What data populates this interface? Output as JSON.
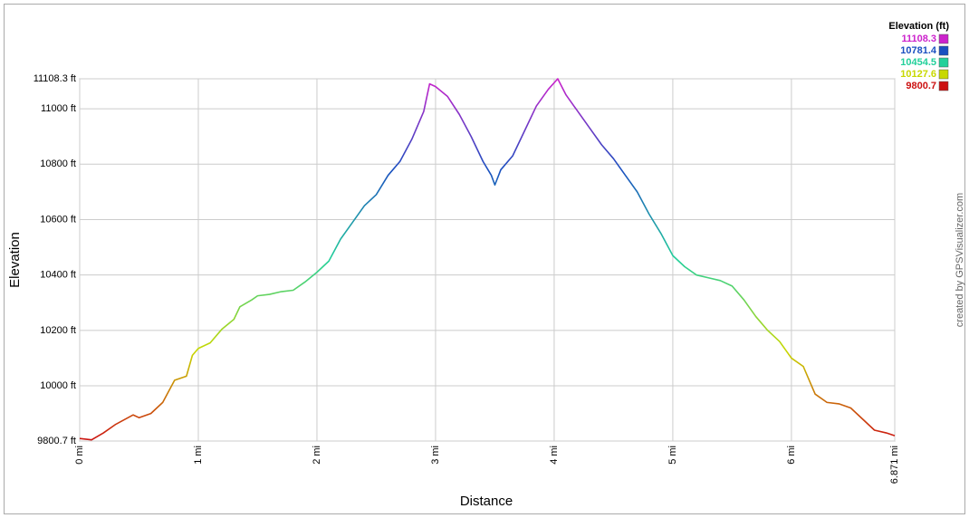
{
  "chart_data": {
    "type": "line",
    "x_label": "Distance",
    "y_label": "Elevation",
    "credit": "created by GPSVisualizer.com",
    "xlim": [
      0,
      6.871
    ],
    "ylim": [
      9800.7,
      11108.3
    ],
    "xticks": [
      {
        "value": 0,
        "label": "0 mi"
      },
      {
        "value": 1,
        "label": "1 mi"
      },
      {
        "value": 2,
        "label": "2 mi"
      },
      {
        "value": 3,
        "label": "3 mi"
      },
      {
        "value": 4,
        "label": "4 mi"
      },
      {
        "value": 5,
        "label": "5 mi"
      },
      {
        "value": 6,
        "label": "6 mi"
      },
      {
        "value": 6.871,
        "label": "6.871 mi"
      }
    ],
    "yticks": [
      {
        "value": 9800.7,
        "label": "9800.7 ft"
      },
      {
        "value": 10000,
        "label": "10000 ft"
      },
      {
        "value": 10200,
        "label": "10200 ft"
      },
      {
        "value": 10400,
        "label": "10400 ft"
      },
      {
        "value": 10600,
        "label": "10600 ft"
      },
      {
        "value": 10800,
        "label": "10800 ft"
      },
      {
        "value": 11000,
        "label": "11000 ft"
      },
      {
        "value": 11108.3,
        "label": "11108.3 ft"
      }
    ],
    "grid": true,
    "legend": {
      "title": "Elevation (ft)",
      "entries": [
        {
          "value": 11108.3,
          "color": "#cc22cc"
        },
        {
          "value": 10781.4,
          "color": "#1a4fc0"
        },
        {
          "value": 10454.5,
          "color": "#22d09a"
        },
        {
          "value": 10127.6,
          "color": "#c8d800"
        },
        {
          "value": 9800.7,
          "color": "#cc1111"
        }
      ]
    },
    "x": [
      0,
      0.1,
      0.2,
      0.3,
      0.45,
      0.5,
      0.6,
      0.7,
      0.8,
      0.9,
      0.95,
      1.0,
      1.1,
      1.2,
      1.3,
      1.35,
      1.45,
      1.5,
      1.6,
      1.7,
      1.8,
      1.9,
      2.0,
      2.1,
      2.2,
      2.3,
      2.4,
      2.5,
      2.6,
      2.7,
      2.8,
      2.9,
      2.95,
      3.0,
      3.1,
      3.2,
      3.3,
      3.4,
      3.47,
      3.5,
      3.55,
      3.65,
      3.75,
      3.85,
      3.95,
      4.03,
      4.1,
      4.2,
      4.3,
      4.4,
      4.5,
      4.6,
      4.7,
      4.8,
      4.9,
      5.0,
      5.1,
      5.2,
      5.3,
      5.4,
      5.5,
      5.6,
      5.7,
      5.8,
      5.9,
      6.0,
      6.1,
      6.2,
      6.3,
      6.4,
      6.5,
      6.6,
      6.7,
      6.8,
      6.871
    ],
    "values": [
      9810,
      9805,
      9830,
      9860,
      9895,
      9885,
      9900,
      9940,
      10020,
      10035,
      10110,
      10135,
      10155,
      10205,
      10240,
      10285,
      10310,
      10325,
      10330,
      10340,
      10345,
      10375,
      10410,
      10450,
      10530,
      10590,
      10650,
      10690,
      10760,
      10810,
      10890,
      10990,
      11090,
      11080,
      11045,
      10980,
      10900,
      10810,
      10760,
      10725,
      10780,
      10830,
      10920,
      11010,
      11070,
      11108.3,
      11050,
      10990,
      10930,
      10870,
      10820,
      10760,
      10700,
      10620,
      10550,
      10470,
      10430,
      10400,
      10390,
      10380,
      10360,
      10310,
      10250,
      10200,
      10160,
      10100,
      10070,
      9970,
      9940,
      9935,
      9920,
      9880,
      9840,
      9830,
      9820
    ]
  }
}
